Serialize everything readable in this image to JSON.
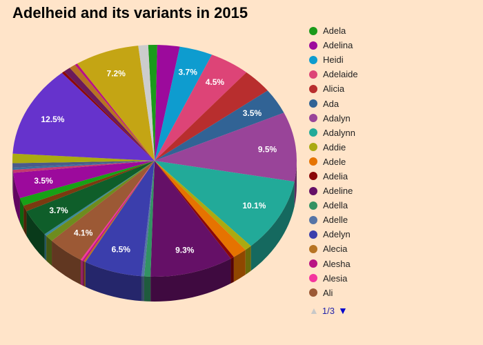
{
  "title": "Adelheid and its variants in 2015",
  "legend": {
    "page_label": "1/3",
    "prev_icon": "triangle-up-icon",
    "next_icon": "triangle-down-icon"
  },
  "chart_data": {
    "type": "pie",
    "style": "3d",
    "title": "Adelheid and its variants in 2015",
    "legend_position": "right",
    "slices": [
      {
        "name": "Adela",
        "value": 1.0,
        "color": "#1a9a1a"
      },
      {
        "name": "Adelina",
        "value": 2.5,
        "color": "#9c0a9c"
      },
      {
        "name": "Heidi",
        "value": 3.7,
        "color": "#0e9ccf",
        "label": "3.7%"
      },
      {
        "name": "Adelaide",
        "value": 4.5,
        "color": "#dd4477",
        "label": "4.5%"
      },
      {
        "name": "Alicia",
        "value": 3.4,
        "color": "#b82e2e"
      },
      {
        "name": "Ada",
        "value": 3.5,
        "color": "#316395",
        "label": "3.5%"
      },
      {
        "name": "Adalyn",
        "value": 9.5,
        "color": "#994499",
        "label": "9.5%"
      },
      {
        "name": "Adalynn",
        "value": 10.1,
        "color": "#22aa99",
        "label": "10.1%"
      },
      {
        "name": "Addie",
        "value": 0.8,
        "color": "#aaaa11"
      },
      {
        "name": "Adele",
        "value": 1.6,
        "color": "#e67300"
      },
      {
        "name": "Adelia",
        "value": 0.4,
        "color": "#8b0707"
      },
      {
        "name": "Adeline",
        "value": 9.3,
        "color": "#651067",
        "label": "9.3%"
      },
      {
        "name": "Adella",
        "value": 0.7,
        "color": "#329262"
      },
      {
        "name": "Adelle",
        "value": 0.3,
        "color": "#5574a6"
      },
      {
        "name": "Adelyn",
        "value": 6.5,
        "color": "#3b3eac",
        "label": "6.5%"
      },
      {
        "name": "Alecia",
        "value": 0.2,
        "color": "#b77322"
      },
      {
        "name": "Alesha",
        "value": 0.2,
        "color": "#b91383"
      },
      {
        "name": "Alesia",
        "value": 0.2,
        "color": "#f4359e"
      },
      {
        "name": "Ali",
        "value": 4.1,
        "color": "#9c5935",
        "label": "4.1%"
      },
      {
        "name": "",
        "value": 0.9,
        "color": "#6e8c1e"
      },
      {
        "name": "",
        "value": 0.3,
        "color": "#3b8a9c"
      },
      {
        "name": "",
        "value": 3.7,
        "color": "#0f5e2a",
        "label": "3.7%"
      },
      {
        "name": "",
        "value": 0.8,
        "color": "#7a3a10"
      },
      {
        "name": "",
        "value": 1.1,
        "color": "#16a116"
      },
      {
        "name": "",
        "value": 3.5,
        "color": "#9c0a9c",
        "label": "3.5%"
      },
      {
        "name": "",
        "value": 0.4,
        "color": "#c23b6e"
      },
      {
        "name": "",
        "value": 0.3,
        "color": "#3a6e9e"
      },
      {
        "name": "",
        "value": 0.6,
        "color": "#4a5a8a"
      },
      {
        "name": "",
        "value": 1.3,
        "color": "#aaaa11"
      },
      {
        "name": "",
        "value": 12.5,
        "color": "#6633cc",
        "label": "12.5%"
      },
      {
        "name": "",
        "value": 0.3,
        "color": "#8b0707"
      },
      {
        "name": "",
        "value": 0.8,
        "color": "#6a1a5a"
      },
      {
        "name": "",
        "value": 0.7,
        "color": "#b77322"
      },
      {
        "name": "",
        "value": 0.3,
        "color": "#b91383"
      },
      {
        "name": "",
        "value": 7.2,
        "color": "#c4a514",
        "label": "7.2%"
      },
      {
        "name": "",
        "value": 1.1,
        "color": "#cccccc"
      }
    ]
  }
}
